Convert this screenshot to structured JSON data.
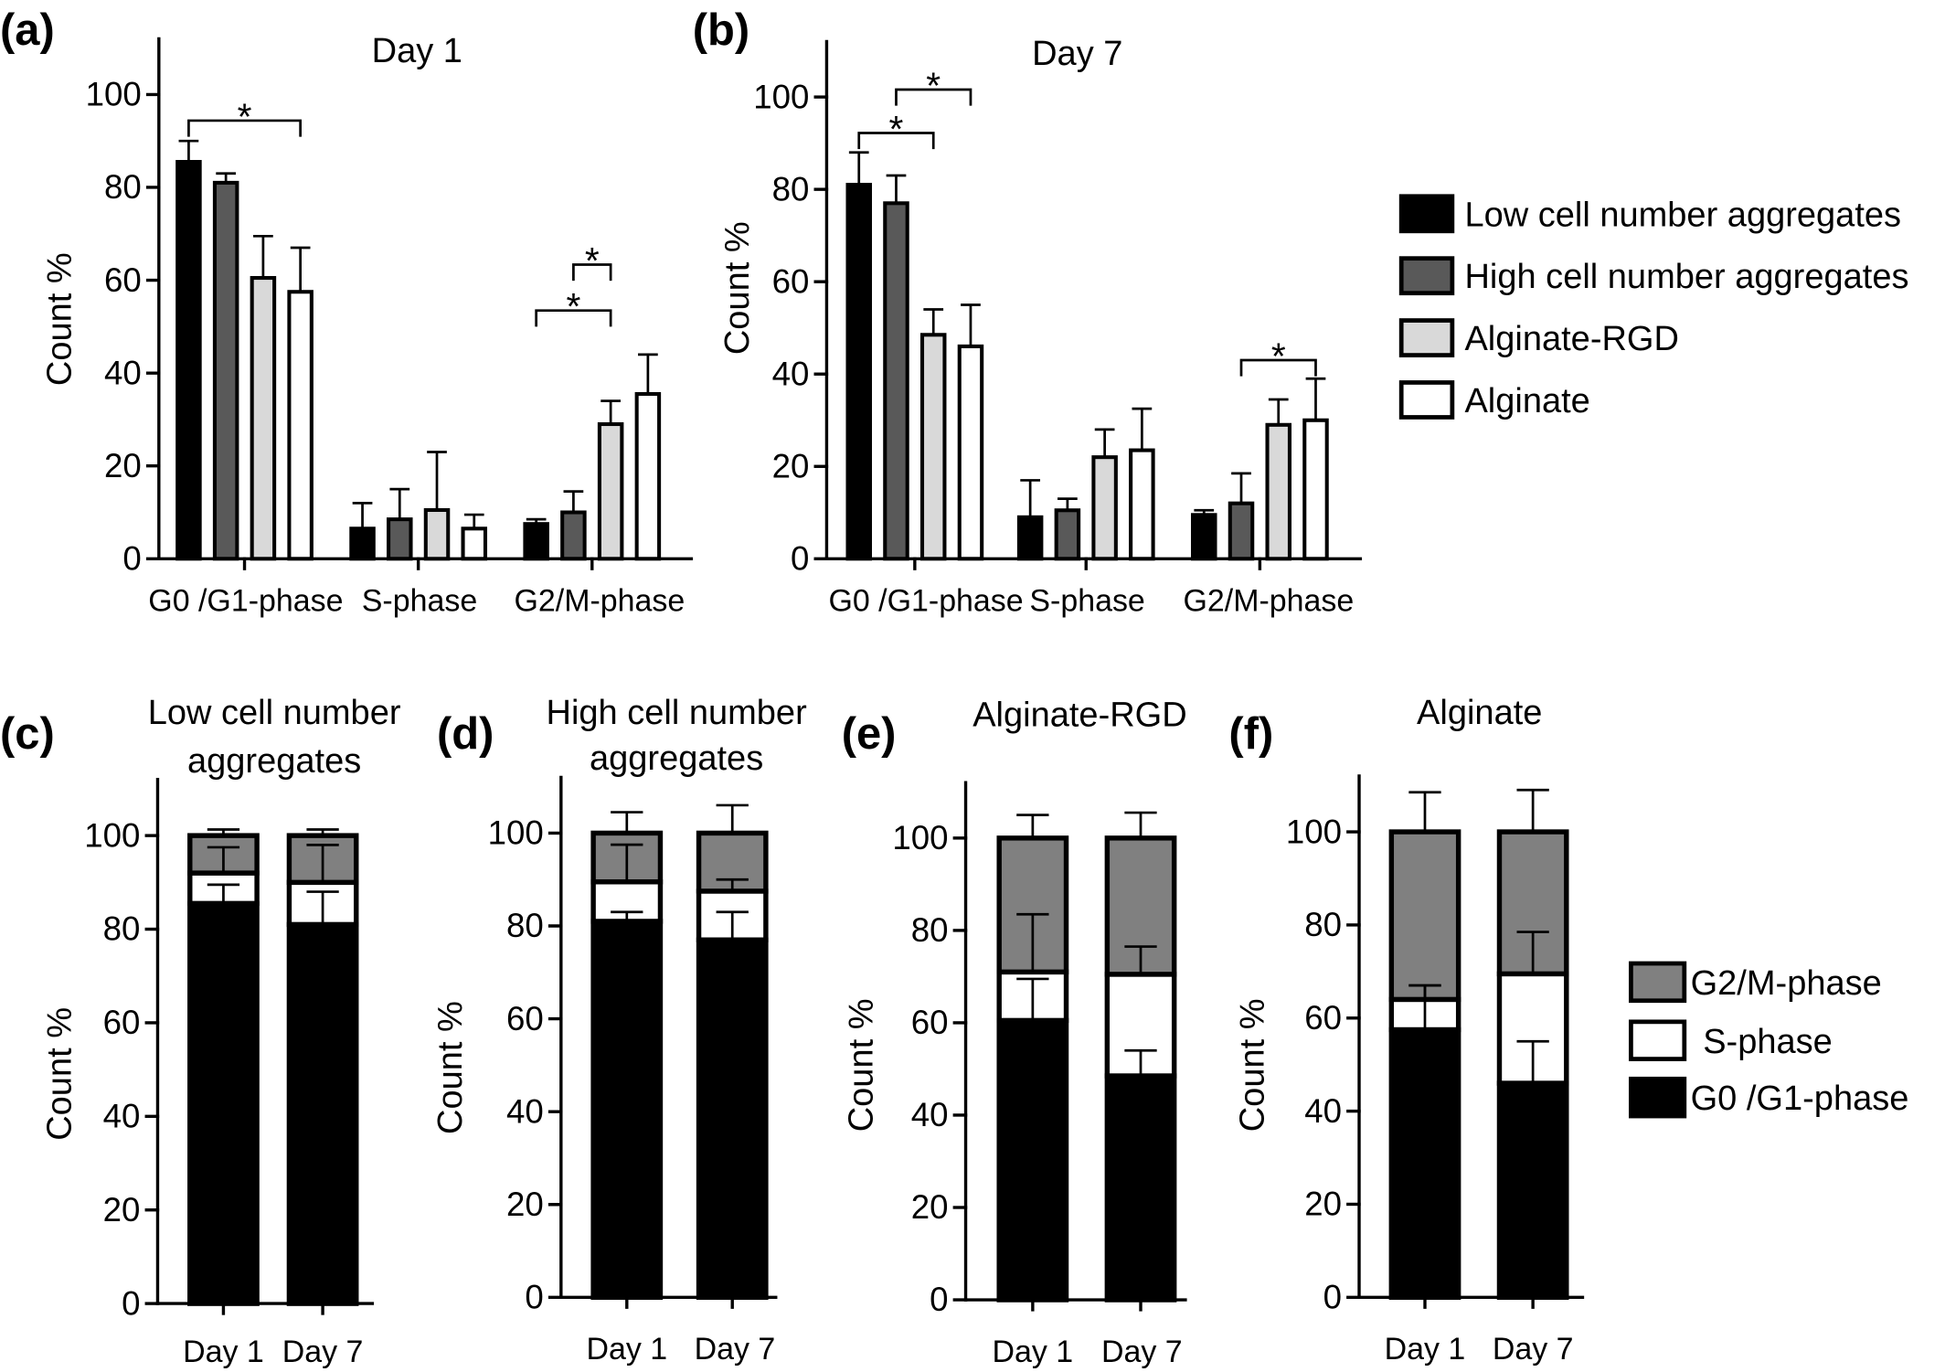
{
  "chart_data": [
    {
      "panel_label": "(a)",
      "type": "bar",
      "stacked": false,
      "title": "Day 1",
      "xlabel": "",
      "ylabel": "Count %",
      "ylim": [
        0,
        112
      ],
      "yticks": [
        0,
        20,
        40,
        60,
        80,
        100
      ],
      "grid": false,
      "legend": "right",
      "categories": [
        "G0 /G1-phase",
        "S-phase",
        "G2/M-phase"
      ],
      "series": [
        {
          "name": "Low cell number aggregates",
          "color": "#000000",
          "values": [
            85.5,
            6.5,
            7.5
          ],
          "error": [
            4.5,
            5.5,
            1
          ]
        },
        {
          "name": "High cell number aggregates",
          "color": "#595959",
          "values": [
            81,
            8.5,
            10
          ],
          "error": [
            2,
            6.5,
            4.5
          ]
        },
        {
          "name": "Alginate-RGD",
          "color": "#d9d9d9",
          "values": [
            60.5,
            10.5,
            29
          ],
          "error": [
            9,
            12.5,
            5
          ]
        },
        {
          "name": "Alginate",
          "color": "#ffffff",
          "values": [
            57.5,
            6.5,
            35.5
          ],
          "error": [
            9.5,
            3,
            8.5
          ]
        }
      ],
      "significance": [
        {
          "category": 0,
          "between": [
            0,
            3
          ],
          "label": "*"
        },
        {
          "category": 2,
          "between": [
            0,
            2
          ],
          "label": "*"
        },
        {
          "category": 2,
          "between": [
            1,
            2
          ],
          "label": "*"
        }
      ]
    },
    {
      "panel_label": "(b)",
      "type": "bar",
      "stacked": false,
      "title": "Day 7",
      "xlabel": "",
      "ylabel": "Count %",
      "ylim": [
        0,
        112
      ],
      "yticks": [
        0,
        20,
        40,
        60,
        80,
        100
      ],
      "grid": false,
      "legend": "right",
      "categories": [
        "G0 /G1-phase",
        "S-phase",
        "G2/M-phase"
      ],
      "series": [
        {
          "name": "Low cell number aggregates",
          "color": "#000000",
          "values": [
            81,
            9,
            9.5
          ],
          "error": [
            7,
            8,
            1
          ]
        },
        {
          "name": "High cell number aggregates",
          "color": "#595959",
          "values": [
            77,
            10.5,
            12
          ],
          "error": [
            6,
            2.5,
            6.5
          ]
        },
        {
          "name": "Alginate-RGD",
          "color": "#d9d9d9",
          "values": [
            48.5,
            22,
            29
          ],
          "error": [
            5.5,
            6,
            5.5
          ]
        },
        {
          "name": "Alginate",
          "color": "#ffffff",
          "values": [
            46,
            23.5,
            30
          ],
          "error": [
            9,
            9,
            9
          ]
        }
      ],
      "significance": [
        {
          "category": 0,
          "between": [
            0,
            2
          ],
          "label": "*"
        },
        {
          "category": 0,
          "between": [
            1,
            3
          ],
          "label": "*"
        },
        {
          "category": 2,
          "between": [
            1,
            3
          ],
          "label": "*"
        }
      ]
    },
    {
      "panel_label": "(c)",
      "type": "bar",
      "stacked": true,
      "title_lines": [
        "Low cell number",
        "aggregates"
      ],
      "xlabel": "",
      "ylabel": "Count %",
      "ylim": [
        0,
        112
      ],
      "yticks": [
        0,
        20,
        40,
        60,
        80,
        100
      ],
      "grid": false,
      "legend": "right",
      "categories": [
        "Day 1",
        "Day 7"
      ],
      "series": [
        {
          "name": "G0 /G1-phase",
          "color": "#000000",
          "values": [
            85.5,
            81
          ],
          "error": [
            4,
            7
          ]
        },
        {
          "name": "S-phase",
          "color": "#ffffff",
          "values": [
            6.5,
            9
          ],
          "error": [
            5.5,
            8
          ]
        },
        {
          "name": "G2/M-phase",
          "color": "#808080",
          "values": [
            8,
            10
          ],
          "error": [
            1.3,
            1.3
          ]
        }
      ]
    },
    {
      "panel_label": "(d)",
      "type": "bar",
      "stacked": true,
      "title_lines": [
        "High cell number",
        "aggregates"
      ],
      "xlabel": "",
      "ylabel": "Count %",
      "ylim": [
        0,
        112
      ],
      "yticks": [
        0,
        20,
        40,
        60,
        80,
        100
      ],
      "grid": false,
      "legend": "right",
      "categories": [
        "Day 1",
        "Day 7"
      ],
      "series": [
        {
          "name": "G0 /G1-phase",
          "color": "#000000",
          "values": [
            81,
            77
          ],
          "error": [
            2,
            6
          ]
        },
        {
          "name": "S-phase",
          "color": "#ffffff",
          "values": [
            8.5,
            10.5
          ],
          "error": [
            8,
            2.5
          ]
        },
        {
          "name": "G2/M-phase",
          "color": "#808080",
          "values": [
            10.5,
            12.5
          ],
          "error": [
            4.5,
            6
          ]
        }
      ]
    },
    {
      "panel_label": "(e)",
      "type": "bar",
      "stacked": true,
      "title_lines": [
        "Alginate-RGD"
      ],
      "xlabel": "",
      "ylabel": "Count %",
      "ylim": [
        0,
        112
      ],
      "yticks": [
        0,
        20,
        40,
        60,
        80,
        100
      ],
      "grid": false,
      "legend": "right",
      "categories": [
        "Day 1",
        "Day 7"
      ],
      "series": [
        {
          "name": "G0 /G1-phase",
          "color": "#000000",
          "values": [
            60.5,
            48.5
          ],
          "error": [
            9,
            5.5
          ]
        },
        {
          "name": "S-phase",
          "color": "#ffffff",
          "values": [
            10.5,
            22
          ],
          "error": [
            12.5,
            6
          ]
        },
        {
          "name": "G2/M-phase",
          "color": "#808080",
          "values": [
            29,
            29.5
          ],
          "error": [
            5,
            5.5
          ]
        }
      ]
    },
    {
      "panel_label": "(f)",
      "type": "bar",
      "stacked": true,
      "title_lines": [
        "Alginate"
      ],
      "xlabel": "",
      "ylabel": "Count %",
      "ylim": [
        0,
        112
      ],
      "yticks": [
        0,
        20,
        40,
        60,
        80,
        100
      ],
      "grid": false,
      "legend": "right",
      "categories": [
        "Day 1",
        "Day 7"
      ],
      "series": [
        {
          "name": "G0 /G1-phase",
          "color": "#000000",
          "values": [
            57.5,
            46
          ],
          "error": [
            9.5,
            9
          ]
        },
        {
          "name": "S-phase",
          "color": "#ffffff",
          "values": [
            6.5,
            23.5
          ],
          "error": [
            3,
            9
          ]
        },
        {
          "name": "G2/M-phase",
          "color": "#808080",
          "values": [
            36,
            30.5
          ],
          "error": [
            8.5,
            9
          ]
        }
      ]
    }
  ]
}
